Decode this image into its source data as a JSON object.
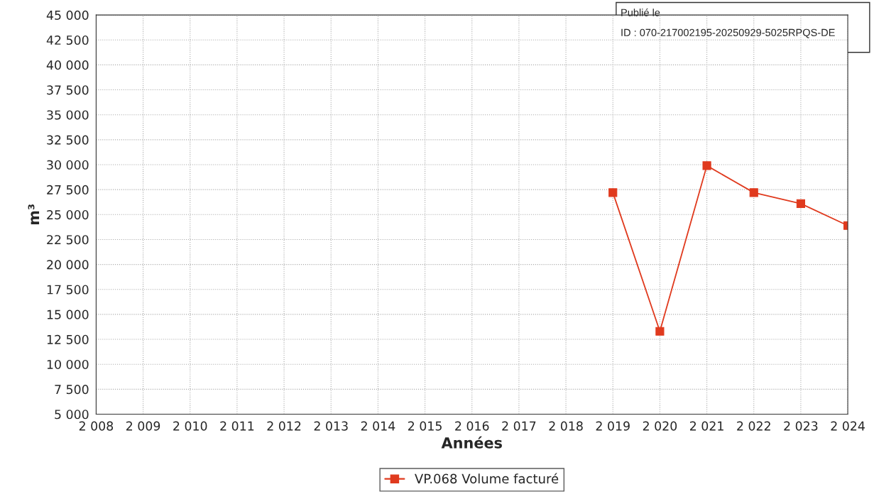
{
  "chart_data": {
    "type": "line",
    "xlabel": "Années",
    "ylabel": "m³",
    "x": [
      2019,
      2020,
      2021,
      2022,
      2023,
      2024
    ],
    "series": [
      {
        "name": "VP.068 Volume facturé",
        "color": "#e03a1e",
        "values": [
          27200,
          13300,
          29900,
          27200,
          26100,
          23900
        ]
      }
    ],
    "xlim": [
      2008,
      2024
    ],
    "xticks": [
      {
        "value": 2008,
        "label": "2 008"
      },
      {
        "value": 2009,
        "label": "2 009"
      },
      {
        "value": 2010,
        "label": "2 010"
      },
      {
        "value": 2011,
        "label": "2 011"
      },
      {
        "value": 2012,
        "label": "2 012"
      },
      {
        "value": 2013,
        "label": "2 013"
      },
      {
        "value": 2014,
        "label": "2 014"
      },
      {
        "value": 2015,
        "label": "2 015"
      },
      {
        "value": 2016,
        "label": "2 016"
      },
      {
        "value": 2017,
        "label": "2 017"
      },
      {
        "value": 2018,
        "label": "2 018"
      },
      {
        "value": 2019,
        "label": "2 019"
      },
      {
        "value": 2020,
        "label": "2 020"
      },
      {
        "value": 2021,
        "label": "2 021"
      },
      {
        "value": 2022,
        "label": "2 022"
      },
      {
        "value": 2023,
        "label": "2 023"
      },
      {
        "value": 2024,
        "label": "2 024"
      }
    ],
    "ylim": [
      5000,
      45000
    ],
    "yticks": [
      {
        "value": 5000,
        "label": "5 000"
      },
      {
        "value": 7500,
        "label": "7 500"
      },
      {
        "value": 10000,
        "label": "10 000"
      },
      {
        "value": 12500,
        "label": "12 500"
      },
      {
        "value": 15000,
        "label": "15 000"
      },
      {
        "value": 17500,
        "label": "17 500"
      },
      {
        "value": 20000,
        "label": "20 000"
      },
      {
        "value": 22500,
        "label": "22 500"
      },
      {
        "value": 25000,
        "label": "25 000"
      },
      {
        "value": 27500,
        "label": "27 500"
      },
      {
        "value": 30000,
        "label": "30 000"
      },
      {
        "value": 32500,
        "label": "32 500"
      },
      {
        "value": 35000,
        "label": "35 000"
      },
      {
        "value": 37500,
        "label": "37 500"
      },
      {
        "value": 40000,
        "label": "40 000"
      },
      {
        "value": 42500,
        "label": "42 500"
      },
      {
        "value": 45000,
        "label": "45 000"
      }
    ],
    "grid": true,
    "legend": "bottom",
    "marker": "square",
    "line_style": "solid",
    "annotations": [
      "Publié le",
      "ID : 070-217002195-20250929-5025RPQS-DE"
    ]
  }
}
